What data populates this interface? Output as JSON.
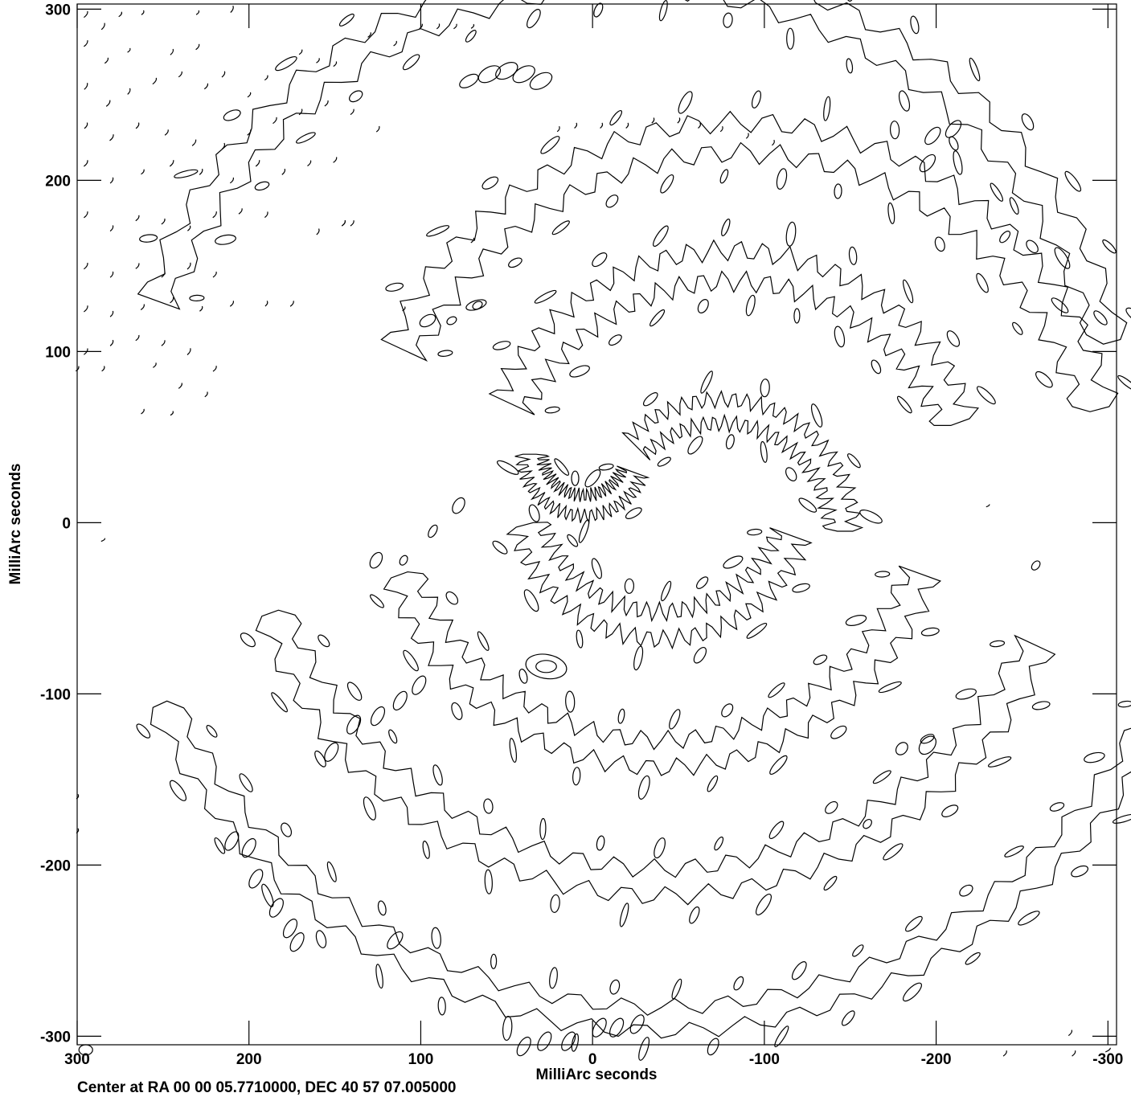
{
  "chart_data": {
    "type": "contour",
    "title": "",
    "xlabel": "MilliArc seconds",
    "ylabel": "MilliArc seconds",
    "xlim": [
      300,
      -305
    ],
    "ylim": [
      -305,
      303
    ],
    "x_ticks": [
      300,
      200,
      100,
      0,
      -100,
      -200,
      -300
    ],
    "x_tick_labels": [
      "300",
      "200",
      "100",
      "0",
      "-100",
      "-200",
      "-300"
    ],
    "y_ticks": [
      300,
      200,
      100,
      0,
      -100,
      -200,
      -300
    ],
    "y_tick_labels": [
      "300",
      "200",
      "100",
      "0",
      "-100",
      "-200",
      "-300"
    ],
    "grid": false,
    "footer": "Center at RA 00 00 05.7710000, DEC 40 57 07.005000",
    "colors": {
      "line": "#000000",
      "background": "#ffffff"
    },
    "arcs": [
      {
        "cx": -75,
        "cy": -5,
        "r": 70,
        "start": 45,
        "end": 180,
        "thickness": 14,
        "count": 12
      },
      {
        "cx": -80,
        "cy": 10,
        "r": 140,
        "start": 25,
        "end": 160,
        "thickness": 18,
        "count": 20
      },
      {
        "cx": -85,
        "cy": 10,
        "r": 215,
        "start": 25,
        "end": 165,
        "thickness": 18,
        "count": 28
      },
      {
        "cx": -20,
        "cy": 30,
        "r": 290,
        "start": 20,
        "end": 165,
        "thickness": 16,
        "count": 36
      },
      {
        "cx": 5,
        "cy": 40,
        "r": 30,
        "start": 200,
        "end": 360,
        "thickness": 12,
        "count": 8
      },
      {
        "cx": -40,
        "cy": 20,
        "r": 80,
        "start": 200,
        "end": 345,
        "thickness": 16,
        "count": 14
      },
      {
        "cx": -40,
        "cy": 25,
        "r": 160,
        "start": 200,
        "end": 340,
        "thickness": 16,
        "count": 22
      },
      {
        "cx": -40,
        "cy": 30,
        "r": 240,
        "start": 205,
        "end": 340,
        "thickness": 16,
        "count": 30
      },
      {
        "cx": -40,
        "cy": 30,
        "r": 320,
        "start": 205,
        "end": 335,
        "thickness": 14,
        "count": 38
      }
    ],
    "blobs": [
      {
        "x": 27,
        "y": -84,
        "rx": 6,
        "ry": 3.5,
        "angle": 0
      },
      {
        "x": 27,
        "y": -84,
        "rx": 12,
        "ry": 7,
        "angle": 10
      },
      {
        "x": 30,
        "y": 258,
        "rx": 4,
        "ry": 7,
        "angle": 60
      },
      {
        "x": 40,
        "y": 262,
        "rx": 4,
        "ry": 7,
        "angle": 60
      },
      {
        "x": 50,
        "y": 264,
        "rx": 4,
        "ry": 7,
        "angle": 60
      },
      {
        "x": 60,
        "y": 262,
        "rx": 4,
        "ry": 7,
        "angle": 60
      },
      {
        "x": 72,
        "y": 258,
        "rx": 3,
        "ry": 6,
        "angle": 60
      },
      {
        "x": -198,
        "y": 226,
        "rx": 3,
        "ry": 6,
        "angle": 40
      },
      {
        "x": -210,
        "y": 230,
        "rx": 3,
        "ry": 6,
        "angle": 40
      },
      {
        "x": -195,
        "y": 210,
        "rx": 3,
        "ry": 6,
        "angle": 40
      },
      {
        "x": -240,
        "y": 167,
        "rx": 2,
        "ry": 4,
        "angle": 40
      },
      {
        "x": 152,
        "y": -134,
        "rx": 3,
        "ry": 6,
        "angle": 30
      },
      {
        "x": 139,
        "y": -118,
        "rx": 3,
        "ry": 6,
        "angle": 30
      },
      {
        "x": 125,
        "y": -113,
        "rx": 3,
        "ry": 6,
        "angle": 30
      },
      {
        "x": 112,
        "y": -104,
        "rx": 3,
        "ry": 6,
        "angle": 30
      },
      {
        "x": 101,
        "y": -95,
        "rx": 3,
        "ry": 6,
        "angle": 30
      },
      {
        "x": 126,
        "y": -22,
        "rx": 3,
        "ry": 5,
        "angle": 30
      },
      {
        "x": 110,
        "y": -22,
        "rx": 2,
        "ry": 3,
        "angle": 30
      },
      {
        "x": 93,
        "y": -5,
        "rx": 2,
        "ry": 4,
        "angle": 30
      },
      {
        "x": 78,
        "y": 10,
        "rx": 3,
        "ry": 5,
        "angle": 30
      },
      {
        "x": 96,
        "y": 118,
        "rx": 3,
        "ry": 5,
        "angle": 60
      },
      {
        "x": 82,
        "y": 118,
        "rx": 2,
        "ry": 3,
        "angle": 60
      },
      {
        "x": 67,
        "y": 127,
        "rx": 2,
        "ry": 3,
        "angle": 60
      },
      {
        "x": 172,
        "y": -245,
        "rx": 3,
        "ry": 6,
        "angle": 30
      },
      {
        "x": 200,
        "y": -190,
        "rx": 3,
        "ry": 6,
        "angle": 30
      },
      {
        "x": 196,
        "y": -208,
        "rx": 3,
        "ry": 6,
        "angle": 30
      },
      {
        "x": 184,
        "y": -225,
        "rx": 3,
        "ry": 6,
        "angle": 30
      },
      {
        "x": 176,
        "y": -237,
        "rx": 3,
        "ry": 6,
        "angle": 30
      },
      {
        "x": 210,
        "y": -186,
        "rx": 3,
        "ry": 6,
        "angle": 30
      },
      {
        "x": 115,
        "y": -244,
        "rx": 3,
        "ry": 6,
        "angle": 40
      },
      {
        "x": -4,
        "y": -295,
        "rx": 3,
        "ry": 6,
        "angle": 30
      },
      {
        "x": -14,
        "y": -295,
        "rx": 3,
        "ry": 6,
        "angle": 30
      },
      {
        "x": -26,
        "y": -293,
        "rx": 3,
        "ry": 6,
        "angle": 30
      },
      {
        "x": 14,
        "y": -303,
        "rx": 3,
        "ry": 6,
        "angle": 30
      },
      {
        "x": 28,
        "y": -303,
        "rx": 3,
        "ry": 6,
        "angle": 30
      },
      {
        "x": 40,
        "y": -306,
        "rx": 3,
        "ry": 6,
        "angle": 30
      },
      {
        "x": 295,
        "y": -308,
        "rx": 4,
        "ry": 3,
        "angle": 0
      },
      {
        "x": -195,
        "y": -130,
        "rx": 4,
        "ry": 6,
        "angle": 40
      },
      {
        "x": -180,
        "y": -132,
        "rx": 3,
        "ry": 4,
        "angle": 40
      },
      {
        "x": -160,
        "y": -176,
        "rx": 2,
        "ry": 3,
        "angle": 40
      },
      {
        "x": -258,
        "y": -25,
        "rx": 2,
        "ry": 3,
        "angle": 40
      }
    ],
    "dashes": [
      {
        "x": 295,
        "y": 297,
        "len": 9,
        "angle": 60
      },
      {
        "x": 285,
        "y": 290,
        "len": 9,
        "angle": 65
      },
      {
        "x": 275,
        "y": 297,
        "len": 7,
        "angle": 60
      },
      {
        "x": 262,
        "y": 298,
        "len": 6,
        "angle": 65
      },
      {
        "x": 230,
        "y": 298,
        "len": 6,
        "angle": 60
      },
      {
        "x": 210,
        "y": 300,
        "len": 9,
        "angle": 70
      },
      {
        "x": 295,
        "y": 280,
        "len": 9,
        "angle": 60
      },
      {
        "x": 283,
        "y": 270,
        "len": 8,
        "angle": 60
      },
      {
        "x": 270,
        "y": 276,
        "len": 6,
        "angle": 60
      },
      {
        "x": 245,
        "y": 275,
        "len": 8,
        "angle": 65
      },
      {
        "x": 230,
        "y": 278,
        "len": 8,
        "angle": 60
      },
      {
        "x": 215,
        "y": 262,
        "len": 8,
        "angle": 65
      },
      {
        "x": 295,
        "y": 255,
        "len": 9,
        "angle": 65
      },
      {
        "x": 282,
        "y": 245,
        "len": 9,
        "angle": 60
      },
      {
        "x": 270,
        "y": 252,
        "len": 8,
        "angle": 70
      },
      {
        "x": 255,
        "y": 258,
        "len": 9,
        "angle": 60
      },
      {
        "x": 240,
        "y": 262,
        "len": 8,
        "angle": 60
      },
      {
        "x": 225,
        "y": 255,
        "len": 8,
        "angle": 60
      },
      {
        "x": 295,
        "y": 232,
        "len": 8,
        "angle": 65
      },
      {
        "x": 280,
        "y": 225,
        "len": 9,
        "angle": 60
      },
      {
        "x": 265,
        "y": 232,
        "len": 8,
        "angle": 65
      },
      {
        "x": 248,
        "y": 228,
        "len": 8,
        "angle": 60
      },
      {
        "x": 232,
        "y": 222,
        "len": 9,
        "angle": 60
      },
      {
        "x": 215,
        "y": 220,
        "len": 8,
        "angle": 70
      },
      {
        "x": 200,
        "y": 228,
        "len": 8,
        "angle": 60
      },
      {
        "x": 185,
        "y": 235,
        "len": 9,
        "angle": 60
      },
      {
        "x": 170,
        "y": 240,
        "len": 8,
        "angle": 65
      },
      {
        "x": 155,
        "y": 245,
        "len": 8,
        "angle": 60
      },
      {
        "x": 140,
        "y": 240,
        "len": 8,
        "angle": 60
      },
      {
        "x": 125,
        "y": 230,
        "len": 8,
        "angle": 65
      },
      {
        "x": 295,
        "y": 210,
        "len": 9,
        "angle": 60
      },
      {
        "x": 280,
        "y": 200,
        "len": 8,
        "angle": 65
      },
      {
        "x": 262,
        "y": 205,
        "len": 7,
        "angle": 60
      },
      {
        "x": 245,
        "y": 210,
        "len": 9,
        "angle": 60
      },
      {
        "x": 228,
        "y": 205,
        "len": 8,
        "angle": 65
      },
      {
        "x": 210,
        "y": 200,
        "len": 8,
        "angle": 60
      },
      {
        "x": 195,
        "y": 210,
        "len": 9,
        "angle": 60
      },
      {
        "x": 180,
        "y": 205,
        "len": 8,
        "angle": 65
      },
      {
        "x": 165,
        "y": 210,
        "len": 8,
        "angle": 60
      },
      {
        "x": 150,
        "y": 212,
        "len": 8,
        "angle": 60
      },
      {
        "x": 295,
        "y": 180,
        "len": 9,
        "angle": 60
      },
      {
        "x": 280,
        "y": 172,
        "len": 8,
        "angle": 65
      },
      {
        "x": 265,
        "y": 178,
        "len": 8,
        "angle": 60
      },
      {
        "x": 250,
        "y": 176,
        "len": 8,
        "angle": 60
      },
      {
        "x": 235,
        "y": 172,
        "len": 7,
        "angle": 65
      },
      {
        "x": 220,
        "y": 180,
        "len": 9,
        "angle": 60
      },
      {
        "x": 205,
        "y": 182,
        "len": 8,
        "angle": 60
      },
      {
        "x": 190,
        "y": 180,
        "len": 8,
        "angle": 65
      },
      {
        "x": 160,
        "y": 170,
        "len": 8,
        "angle": 70
      },
      {
        "x": 145,
        "y": 175,
        "len": 8,
        "angle": 60
      },
      {
        "x": 295,
        "y": 150,
        "len": 9,
        "angle": 60
      },
      {
        "x": 280,
        "y": 145,
        "len": 8,
        "angle": 65
      },
      {
        "x": 265,
        "y": 150,
        "len": 8,
        "angle": 60
      },
      {
        "x": 250,
        "y": 145,
        "len": 8,
        "angle": 60
      },
      {
        "x": 235,
        "y": 150,
        "len": 9,
        "angle": 65
      },
      {
        "x": 220,
        "y": 145,
        "len": 8,
        "angle": 60
      },
      {
        "x": 295,
        "y": 125,
        "len": 9,
        "angle": 60
      },
      {
        "x": 280,
        "y": 122,
        "len": 8,
        "angle": 65
      },
      {
        "x": 262,
        "y": 126,
        "len": 8,
        "angle": 60
      },
      {
        "x": 245,
        "y": 130,
        "len": 8,
        "angle": 60
      },
      {
        "x": 228,
        "y": 125,
        "len": 7,
        "angle": 65
      },
      {
        "x": 210,
        "y": 128,
        "len": 8,
        "angle": 60
      },
      {
        "x": 190,
        "y": 128,
        "len": 7,
        "angle": 70
      },
      {
        "x": 175,
        "y": 128,
        "len": 8,
        "angle": 60
      },
      {
        "x": 295,
        "y": 100,
        "len": 9,
        "angle": 60
      },
      {
        "x": 280,
        "y": 105,
        "len": 8,
        "angle": 65
      },
      {
        "x": 265,
        "y": 108,
        "len": 8,
        "angle": 60
      },
      {
        "x": 250,
        "y": 105,
        "len": 8,
        "angle": 60
      },
      {
        "x": 235,
        "y": 100,
        "len": 9,
        "angle": 65
      },
      {
        "x": 220,
        "y": 90,
        "len": 8,
        "angle": 60
      },
      {
        "x": 300,
        "y": 90,
        "len": 7,
        "angle": 60
      },
      {
        "x": 285,
        "y": 90,
        "len": 7,
        "angle": 65
      },
      {
        "x": 240,
        "y": 80,
        "len": 8,
        "angle": 60
      },
      {
        "x": 225,
        "y": 75,
        "len": 7,
        "angle": 65
      },
      {
        "x": 255,
        "y": 92,
        "len": 7,
        "angle": 60
      },
      {
        "x": 262,
        "y": 65,
        "len": 7,
        "angle": 60
      },
      {
        "x": 245,
        "y": 64,
        "len": 6,
        "angle": 60
      },
      {
        "x": 145,
        "y": 175,
        "len": 8,
        "angle": 60
      },
      {
        "x": 140,
        "y": 175,
        "len": 8,
        "angle": 60
      },
      {
        "x": 110,
        "y": 125,
        "len": 6,
        "angle": 60
      },
      {
        "x": 70,
        "y": 165,
        "len": 7,
        "angle": 60
      },
      {
        "x": 130,
        "y": 285,
        "len": 7,
        "angle": 60
      },
      {
        "x": 115,
        "y": 280,
        "len": 7,
        "angle": 60
      },
      {
        "x": 100,
        "y": 290,
        "len": 7,
        "angle": 60
      },
      {
        "x": 90,
        "y": 290,
        "len": 7,
        "angle": 65
      },
      {
        "x": 80,
        "y": 290,
        "len": 7,
        "angle": 60
      },
      {
        "x": 70,
        "y": 290,
        "len": 6,
        "angle": 60
      },
      {
        "x": 170,
        "y": 275,
        "len": 7,
        "angle": 60
      },
      {
        "x": 160,
        "y": 270,
        "len": 7,
        "angle": 60
      },
      {
        "x": 150,
        "y": 268,
        "len": 7,
        "angle": 60
      },
      {
        "x": 190,
        "y": 260,
        "len": 7,
        "angle": 60
      },
      {
        "x": 200,
        "y": 250,
        "len": 7,
        "angle": 60
      },
      {
        "x": 20,
        "y": 230,
        "len": 7,
        "angle": 70
      },
      {
        "x": 10,
        "y": 232,
        "len": 7,
        "angle": 70
      },
      {
        "x": -5,
        "y": 232,
        "len": 7,
        "angle": 70
      },
      {
        "x": -20,
        "y": 232,
        "len": 7,
        "angle": 70
      },
      {
        "x": -35,
        "y": 235,
        "len": 7,
        "angle": 70
      },
      {
        "x": -50,
        "y": 235,
        "len": 7,
        "angle": 70
      },
      {
        "x": -62,
        "y": 232,
        "len": 7,
        "angle": 70
      },
      {
        "x": -75,
        "y": 230,
        "len": 7,
        "angle": 70
      },
      {
        "x": -90,
        "y": 226,
        "len": 7,
        "angle": 70
      },
      {
        "x": -105,
        "y": 222,
        "len": 7,
        "angle": 70
      },
      {
        "x": -230,
        "y": 10,
        "len": 5,
        "angle": 40
      },
      {
        "x": 285,
        "y": -10,
        "len": 6,
        "angle": 40
      },
      {
        "x": -280,
        "y": -310,
        "len": 8,
        "angle": 60
      },
      {
        "x": -240,
        "y": -310,
        "len": 8,
        "angle": 60
      },
      {
        "x": -300,
        "y": -308,
        "len": 8,
        "angle": 40
      },
      {
        "x": -278,
        "y": -298,
        "len": 8,
        "angle": 60
      },
      {
        "x": 300,
        "y": -180,
        "len": 6,
        "angle": 70
      },
      {
        "x": 300,
        "y": -160,
        "len": 6,
        "angle": 70
      }
    ]
  }
}
